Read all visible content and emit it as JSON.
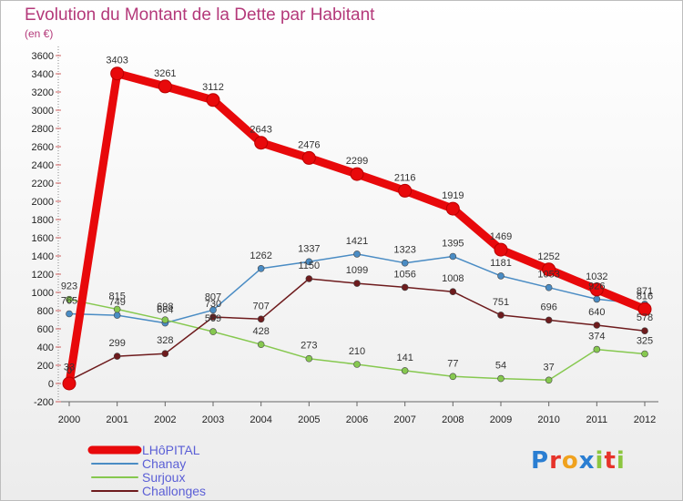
{
  "title": "Evolution du Montant de la Dette par Habitant",
  "subtitle": "(en €)",
  "logo": {
    "text": "Proxiti",
    "letters": [
      "P",
      "r",
      "o",
      "x",
      "i",
      "t",
      "i"
    ],
    "colors": [
      "#2a7ed2",
      "#e6332a",
      "#f0a21e",
      "#2a7ed2",
      "#8cc63f",
      "#e6332a",
      "#8cc63f"
    ]
  },
  "chart_data": {
    "type": "line",
    "x": [
      "2000",
      "2001",
      "2002",
      "2003",
      "2004",
      "2005",
      "2006",
      "2007",
      "2008",
      "2009",
      "2010",
      "2011",
      "2012"
    ],
    "ylim": [
      -200,
      3600
    ],
    "yticks": [
      -200,
      0,
      200,
      400,
      600,
      800,
      1000,
      1200,
      1400,
      1600,
      1800,
      2000,
      2200,
      2400,
      2600,
      2800,
      3000,
      3200,
      3400,
      3600
    ],
    "grid": false,
    "legend_position": "bottom-left",
    "series": [
      {
        "name": "LHôPITAL",
        "color": "#e8090b",
        "values": [
          0,
          3403,
          3261,
          3112,
          2643,
          2476,
          2299,
          2116,
          1919,
          1469,
          1252,
          1032,
          816
        ],
        "labels": [
          "0",
          "3403",
          "3261",
          "3112",
          "2643",
          "2476",
          "2299",
          "2116",
          "1919",
          "1469",
          "1252",
          "1032",
          "816"
        ]
      },
      {
        "name": "Chanay",
        "color": "#4a8cc4",
        "values": [
          765,
          749,
          664,
          807,
          1262,
          1337,
          1421,
          1323,
          1395,
          1181,
          1053,
          926,
          871
        ],
        "labels": [
          "765",
          "749",
          "664",
          "807",
          "1262",
          "1337",
          "1421",
          "1323",
          "1395",
          "1181",
          "1053",
          "926",
          "871"
        ]
      },
      {
        "name": "Surjoux",
        "color": "#86c84f",
        "values": [
          923,
          815,
          698,
          569,
          428,
          273,
          210,
          141,
          77,
          54,
          37,
          374,
          325
        ],
        "labels": [
          "923",
          "815",
          "698",
          "569",
          "428",
          "273",
          "210",
          "141",
          "77",
          "54",
          "37",
          "374",
          "325"
        ]
      },
      {
        "name": "Challonges",
        "color": "#6e1b1d",
        "values": [
          33,
          299,
          328,
          730,
          707,
          1150,
          1099,
          1056,
          1008,
          751,
          696,
          640,
          578
        ],
        "labels": [
          "33",
          "299",
          "328",
          "730",
          "707",
          "1150",
          "1099",
          "1056",
          "1008",
          "751",
          "696",
          "640",
          "578"
        ]
      }
    ]
  }
}
